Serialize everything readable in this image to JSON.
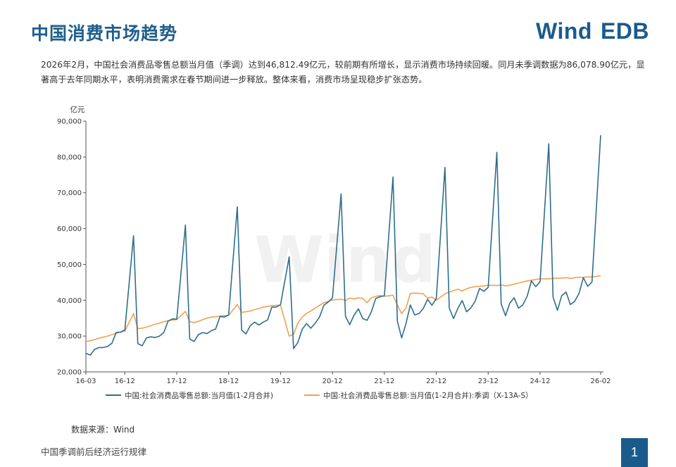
{
  "header": {
    "title": "中国消费市场趋势",
    "logo_brand": "Wind",
    "logo_product": "EDB"
  },
  "summary": "2026年2月，中国社会消费品零售总额当月值（季调）达到46,812.49亿元，较前期有所增长，显示消费市场持续回暖。同月未季调数据为86,078.90亿元，显著高于去年同期水平，表明消费需求在春节期间进一步释放。整体来看，消费市场呈现稳步扩张态势。",
  "footer": {
    "source": "数据来源：Wind",
    "section_title": "中国季调前后经济运行规律",
    "page_number": "1"
  },
  "watermark": "Wind",
  "colors": {
    "title": "#1f5f8b",
    "brand": "#1a5b8c",
    "series_raw": "#2e6e8c",
    "series_sa": "#f0a150",
    "axis": "#555555"
  },
  "chart_data": {
    "type": "line",
    "unit_label": "亿元",
    "ylim": [
      20000,
      90000
    ],
    "yticks": [
      "20,000",
      "30,000",
      "40,000",
      "50,000",
      "60,000",
      "70,000",
      "80,000",
      "90,000"
    ],
    "ytick_values": [
      20000,
      30000,
      40000,
      50000,
      60000,
      70000,
      80000,
      90000
    ],
    "xticks": [
      "16-03",
      "16-12",
      "17-12",
      "18-12",
      "19-12",
      "20-12",
      "21-12",
      "22-12",
      "23-12",
      "24-12",
      "26-02"
    ],
    "x_start": "2016-03",
    "x_end": "2026-02",
    "grid": false,
    "legend_position": "bottom",
    "series": [
      {
        "name": "中国:社会消费品零售总额:当月值(1-2月合并)",
        "values": [
          {
            "x": "2016-03",
            "y": 25200
          },
          {
            "x": "2016-04",
            "y": 24700
          },
          {
            "x": "2016-05",
            "y": 26300
          },
          {
            "x": "2016-06",
            "y": 26800
          },
          {
            "x": "2016-07",
            "y": 26800
          },
          {
            "x": "2016-08",
            "y": 27100
          },
          {
            "x": "2016-09",
            "y": 28000
          },
          {
            "x": "2016-10",
            "y": 31000
          },
          {
            "x": "2016-11",
            "y": 31100
          },
          {
            "x": "2016-12",
            "y": 31700
          },
          {
            "x": "2017-02",
            "y": 58000
          },
          {
            "x": "2017-03",
            "y": 27900
          },
          {
            "x": "2017-04",
            "y": 27300
          },
          {
            "x": "2017-05",
            "y": 29500
          },
          {
            "x": "2017-06",
            "y": 29800
          },
          {
            "x": "2017-07",
            "y": 29600
          },
          {
            "x": "2017-08",
            "y": 30000
          },
          {
            "x": "2017-09",
            "y": 31000
          },
          {
            "x": "2017-10",
            "y": 34200
          },
          {
            "x": "2017-11",
            "y": 34800
          },
          {
            "x": "2017-12",
            "y": 34700
          },
          {
            "x": "2018-02",
            "y": 61000
          },
          {
            "x": "2018-03",
            "y": 29200
          },
          {
            "x": "2018-04",
            "y": 28500
          },
          {
            "x": "2018-05",
            "y": 30400
          },
          {
            "x": "2018-06",
            "y": 31000
          },
          {
            "x": "2018-07",
            "y": 30700
          },
          {
            "x": "2018-08",
            "y": 31500
          },
          {
            "x": "2018-09",
            "y": 32000
          },
          {
            "x": "2018-10",
            "y": 35500
          },
          {
            "x": "2018-11",
            "y": 35300
          },
          {
            "x": "2018-12",
            "y": 35900
          },
          {
            "x": "2019-02",
            "y": 66100
          },
          {
            "x": "2019-03",
            "y": 31700
          },
          {
            "x": "2019-04",
            "y": 30600
          },
          {
            "x": "2019-05",
            "y": 32900
          },
          {
            "x": "2019-06",
            "y": 33900
          },
          {
            "x": "2019-07",
            "y": 33100
          },
          {
            "x": "2019-08",
            "y": 33900
          },
          {
            "x": "2019-09",
            "y": 34500
          },
          {
            "x": "2019-10",
            "y": 38100
          },
          {
            "x": "2019-11",
            "y": 38100
          },
          {
            "x": "2019-12",
            "y": 38800
          },
          {
            "x": "2020-02",
            "y": 52100
          },
          {
            "x": "2020-03",
            "y": 26500
          },
          {
            "x": "2020-04",
            "y": 28200
          },
          {
            "x": "2020-05",
            "y": 31900
          },
          {
            "x": "2020-06",
            "y": 33500
          },
          {
            "x": "2020-07",
            "y": 32200
          },
          {
            "x": "2020-08",
            "y": 33600
          },
          {
            "x": "2020-09",
            "y": 35300
          },
          {
            "x": "2020-10",
            "y": 38600
          },
          {
            "x": "2020-11",
            "y": 39500
          },
          {
            "x": "2020-12",
            "y": 40600
          },
          {
            "x": "2021-02",
            "y": 69700
          },
          {
            "x": "2021-03",
            "y": 35500
          },
          {
            "x": "2021-04",
            "y": 33200
          },
          {
            "x": "2021-05",
            "y": 35900
          },
          {
            "x": "2021-06",
            "y": 37600
          },
          {
            "x": "2021-07",
            "y": 34900
          },
          {
            "x": "2021-08",
            "y": 34400
          },
          {
            "x": "2021-09",
            "y": 36800
          },
          {
            "x": "2021-10",
            "y": 40500
          },
          {
            "x": "2021-11",
            "y": 41000
          },
          {
            "x": "2021-12",
            "y": 41300
          },
          {
            "x": "2022-02",
            "y": 74400
          },
          {
            "x": "2022-03",
            "y": 34200
          },
          {
            "x": "2022-04",
            "y": 29500
          },
          {
            "x": "2022-05",
            "y": 33500
          },
          {
            "x": "2022-06",
            "y": 38700
          },
          {
            "x": "2022-07",
            "y": 35900
          },
          {
            "x": "2022-08",
            "y": 36300
          },
          {
            "x": "2022-09",
            "y": 37700
          },
          {
            "x": "2022-10",
            "y": 40300
          },
          {
            "x": "2022-11",
            "y": 38600
          },
          {
            "x": "2022-12",
            "y": 40500
          },
          {
            "x": "2023-02",
            "y": 77100
          },
          {
            "x": "2023-03",
            "y": 37800
          },
          {
            "x": "2023-04",
            "y": 34900
          },
          {
            "x": "2023-05",
            "y": 37800
          },
          {
            "x": "2023-06",
            "y": 39900
          },
          {
            "x": "2023-07",
            "y": 36800
          },
          {
            "x": "2023-08",
            "y": 37900
          },
          {
            "x": "2023-09",
            "y": 39800
          },
          {
            "x": "2023-10",
            "y": 43300
          },
          {
            "x": "2023-11",
            "y": 42500
          },
          {
            "x": "2023-12",
            "y": 43600
          },
          {
            "x": "2024-02",
            "y": 81300
          },
          {
            "x": "2024-03",
            "y": 39000
          },
          {
            "x": "2024-04",
            "y": 35700
          },
          {
            "x": "2024-05",
            "y": 39200
          },
          {
            "x": "2024-06",
            "y": 40700
          },
          {
            "x": "2024-07",
            "y": 37800
          },
          {
            "x": "2024-08",
            "y": 38700
          },
          {
            "x": "2024-09",
            "y": 41100
          },
          {
            "x": "2024-10",
            "y": 45400
          },
          {
            "x": "2024-11",
            "y": 43800
          },
          {
            "x": "2024-12",
            "y": 45200
          },
          {
            "x": "2025-02",
            "y": 83700
          },
          {
            "x": "2025-03",
            "y": 40900
          },
          {
            "x": "2025-04",
            "y": 37200
          },
          {
            "x": "2025-05",
            "y": 41300
          },
          {
            "x": "2025-06",
            "y": 42300
          },
          {
            "x": "2025-07",
            "y": 38800
          },
          {
            "x": "2025-08",
            "y": 39700
          },
          {
            "x": "2025-09",
            "y": 41900
          },
          {
            "x": "2025-10",
            "y": 46300
          },
          {
            "x": "2025-11",
            "y": 43900
          },
          {
            "x": "2025-12",
            "y": 45100
          },
          {
            "x": "2026-02",
            "y": 86078.9
          }
        ]
      },
      {
        "name": "中国:社会消费品零售总额:当月值(1-2月合并):季调（X-13A-S）",
        "values": [
          {
            "x": "2016-03",
            "y": 28500
          },
          {
            "x": "2016-04",
            "y": 28700
          },
          {
            "x": "2016-05",
            "y": 29000
          },
          {
            "x": "2016-06",
            "y": 29400
          },
          {
            "x": "2016-07",
            "y": 29700
          },
          {
            "x": "2016-08",
            "y": 30000
          },
          {
            "x": "2016-09",
            "y": 30400
          },
          {
            "x": "2016-10",
            "y": 30800
          },
          {
            "x": "2016-11",
            "y": 31100
          },
          {
            "x": "2016-12",
            "y": 31400
          },
          {
            "x": "2017-02",
            "y": 36300
          },
          {
            "x": "2017-03",
            "y": 32100
          },
          {
            "x": "2017-04",
            "y": 32200
          },
          {
            "x": "2017-05",
            "y": 32500
          },
          {
            "x": "2017-06",
            "y": 32900
          },
          {
            "x": "2017-07",
            "y": 33300
          },
          {
            "x": "2017-08",
            "y": 33600
          },
          {
            "x": "2017-09",
            "y": 34000
          },
          {
            "x": "2017-10",
            "y": 34300
          },
          {
            "x": "2017-11",
            "y": 34500
          },
          {
            "x": "2017-12",
            "y": 34600
          },
          {
            "x": "2018-02",
            "y": 36900
          },
          {
            "x": "2018-03",
            "y": 34000
          },
          {
            "x": "2018-04",
            "y": 33800
          },
          {
            "x": "2018-05",
            "y": 34100
          },
          {
            "x": "2018-06",
            "y": 34600
          },
          {
            "x": "2018-07",
            "y": 35000
          },
          {
            "x": "2018-08",
            "y": 35300
          },
          {
            "x": "2018-09",
            "y": 35400
          },
          {
            "x": "2018-10",
            "y": 35600
          },
          {
            "x": "2018-11",
            "y": 35700
          },
          {
            "x": "2018-12",
            "y": 35800
          },
          {
            "x": "2019-02",
            "y": 38800
          },
          {
            "x": "2019-03",
            "y": 36600
          },
          {
            "x": "2019-04",
            "y": 36800
          },
          {
            "x": "2019-05",
            "y": 37000
          },
          {
            "x": "2019-06",
            "y": 37400
          },
          {
            "x": "2019-07",
            "y": 37700
          },
          {
            "x": "2019-08",
            "y": 38100
          },
          {
            "x": "2019-09",
            "y": 38300
          },
          {
            "x": "2019-10",
            "y": 38500
          },
          {
            "x": "2019-11",
            "y": 38600
          },
          {
            "x": "2019-12",
            "y": 38600
          },
          {
            "x": "2020-02",
            "y": 30000
          },
          {
            "x": "2020-03",
            "y": 30500
          },
          {
            "x": "2020-04",
            "y": 33600
          },
          {
            "x": "2020-05",
            "y": 35300
          },
          {
            "x": "2020-06",
            "y": 36300
          },
          {
            "x": "2020-07",
            "y": 37000
          },
          {
            "x": "2020-08",
            "y": 37800
          },
          {
            "x": "2020-09",
            "y": 38600
          },
          {
            "x": "2020-10",
            "y": 39300
          },
          {
            "x": "2020-11",
            "y": 39700
          },
          {
            "x": "2020-12",
            "y": 40100
          },
          {
            "x": "2021-02",
            "y": 40300
          },
          {
            "x": "2021-03",
            "y": 39900
          },
          {
            "x": "2021-04",
            "y": 40600
          },
          {
            "x": "2021-05",
            "y": 40400
          },
          {
            "x": "2021-06",
            "y": 40700
          },
          {
            "x": "2021-07",
            "y": 40500
          },
          {
            "x": "2021-08",
            "y": 39300
          },
          {
            "x": "2021-09",
            "y": 40700
          },
          {
            "x": "2021-10",
            "y": 41100
          },
          {
            "x": "2021-11",
            "y": 41300
          },
          {
            "x": "2021-12",
            "y": 41100
          },
          {
            "x": "2022-02",
            "y": 41400
          },
          {
            "x": "2022-03",
            "y": 38600
          },
          {
            "x": "2022-04",
            "y": 36300
          },
          {
            "x": "2022-05",
            "y": 37900
          },
          {
            "x": "2022-06",
            "y": 41900
          },
          {
            "x": "2022-07",
            "y": 42000
          },
          {
            "x": "2022-08",
            "y": 41900
          },
          {
            "x": "2022-09",
            "y": 41800
          },
          {
            "x": "2022-10",
            "y": 40600
          },
          {
            "x": "2022-11",
            "y": 40900
          },
          {
            "x": "2022-12",
            "y": 40000
          },
          {
            "x": "2023-02",
            "y": 41800
          },
          {
            "x": "2023-03",
            "y": 42300
          },
          {
            "x": "2023-04",
            "y": 42700
          },
          {
            "x": "2023-05",
            "y": 43100
          },
          {
            "x": "2023-06",
            "y": 42600
          },
          {
            "x": "2023-07",
            "y": 43200
          },
          {
            "x": "2023-08",
            "y": 43600
          },
          {
            "x": "2023-09",
            "y": 43800
          },
          {
            "x": "2023-10",
            "y": 43900
          },
          {
            "x": "2023-11",
            "y": 44000
          },
          {
            "x": "2023-12",
            "y": 44200
          },
          {
            "x": "2024-02",
            "y": 44100
          },
          {
            "x": "2024-03",
            "y": 44300
          },
          {
            "x": "2024-04",
            "y": 44000
          },
          {
            "x": "2024-05",
            "y": 44200
          },
          {
            "x": "2024-06",
            "y": 44500
          },
          {
            "x": "2024-07",
            "y": 44800
          },
          {
            "x": "2024-08",
            "y": 45100
          },
          {
            "x": "2024-09",
            "y": 45400
          },
          {
            "x": "2024-10",
            "y": 45600
          },
          {
            "x": "2024-11",
            "y": 45800
          },
          {
            "x": "2024-12",
            "y": 46000
          },
          {
            "x": "2025-02",
            "y": 46000
          },
          {
            "x": "2025-03",
            "y": 46100
          },
          {
            "x": "2025-04",
            "y": 46200
          },
          {
            "x": "2025-05",
            "y": 46200
          },
          {
            "x": "2025-06",
            "y": 46300
          },
          {
            "x": "2025-07",
            "y": 46100
          },
          {
            "x": "2025-08",
            "y": 46300
          },
          {
            "x": "2025-09",
            "y": 46400
          },
          {
            "x": "2025-10",
            "y": 46400
          },
          {
            "x": "2025-11",
            "y": 46500
          },
          {
            "x": "2025-12",
            "y": 46500
          },
          {
            "x": "2026-02",
            "y": 46812.49
          }
        ]
      }
    ]
  }
}
